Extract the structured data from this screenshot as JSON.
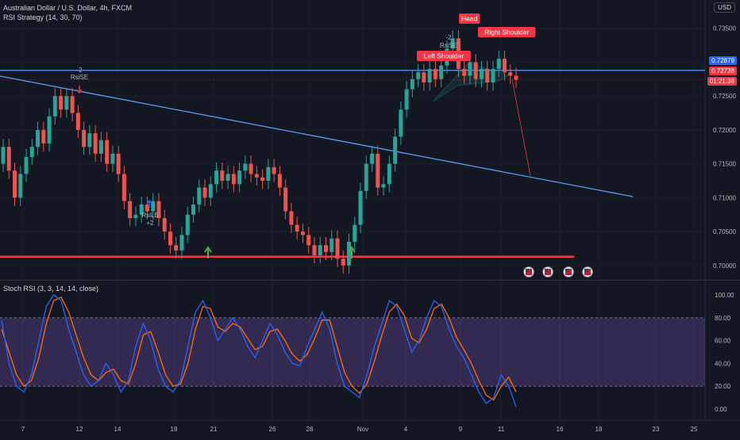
{
  "header": {
    "symbol": "Australian Dollar / U.S. Dollar, 4h, FXCM",
    "indicator": "RSI Strategy (14, 30, 70)"
  },
  "currency_badge": "USD",
  "price_axis": {
    "ticks": [
      "0.73500",
      "0.73000",
      "0.72500",
      "0.72000",
      "0.71500",
      "0.71000",
      "0.70500",
      "0.70000"
    ],
    "current_price": "0.72738",
    "line_price": "0.72879",
    "countdown": "01:21:38"
  },
  "time_axis": {
    "labels": [
      "7",
      "12",
      "14",
      "19",
      "21",
      "26",
      "28",
      "Nov",
      "4",
      "9",
      "11",
      "16",
      "18",
      "23",
      "25"
    ]
  },
  "annotations": {
    "head": "Head",
    "left_shoulder": "Left Shoulder",
    "right_shoulder": "Right Shoulder",
    "rsise_top_count": "-2",
    "rsise_top": "RsiSE",
    "rsise_mid_count": "-2",
    "rsise_mid": "RsiSE",
    "rsile": "RsiLE",
    "rsile_count": "+2"
  },
  "stoch": {
    "title": "Stoch RSI (3, 3, 14, 14, close)",
    "ticks": [
      "100.00",
      "80.00",
      "60.00",
      "40.00",
      "20.00",
      "0.00"
    ]
  },
  "colors": {
    "background": "#131722",
    "up": "#26a69a",
    "down": "#ef5350",
    "trendline": "#5b9cf6",
    "support": "#f23645",
    "stoch_k": "#2962ff",
    "stoch_d": "#ff6d00",
    "band": "#7e57c2"
  },
  "chart_data": {
    "type": "candlestick",
    "instrument": "Australian Dollar / U.S. Dollar",
    "timeframe": "4h",
    "yrange": [
      0.698,
      0.738
    ],
    "close_path": [
      [
        0.715,
        0.7175
      ],
      [
        0.7175,
        0.714
      ],
      [
        0.714,
        0.71
      ],
      [
        0.71,
        0.7135
      ],
      [
        0.7135,
        0.716
      ],
      [
        0.716,
        0.7175
      ],
      [
        0.7175,
        0.72
      ],
      [
        0.72,
        0.718
      ],
      [
        0.718,
        0.722
      ],
      [
        0.722,
        0.725
      ],
      [
        0.725,
        0.723
      ],
      [
        0.723,
        0.725
      ],
      [
        0.725,
        0.7225
      ],
      [
        0.7225,
        0.72
      ],
      [
        0.72,
        0.7175
      ],
      [
        0.7175,
        0.7195
      ],
      [
        0.7195,
        0.7165
      ],
      [
        0.7165,
        0.7185
      ],
      [
        0.7185,
        0.715
      ],
      [
        0.715,
        0.7165
      ],
      [
        0.7165,
        0.7135
      ],
      [
        0.7135,
        0.7095
      ],
      [
        0.7095,
        0.707
      ],
      [
        0.707,
        0.7075
      ],
      [
        0.7075,
        0.709
      ],
      [
        0.709,
        0.708
      ],
      [
        0.708,
        0.7095
      ],
      [
        0.7095,
        0.707
      ],
      [
        0.707,
        0.705
      ],
      [
        0.705,
        0.703
      ],
      [
        0.703,
        0.7022
      ],
      [
        0.7022,
        0.7045
      ],
      [
        0.7045,
        0.7075
      ],
      [
        0.7075,
        0.709
      ],
      [
        0.709,
        0.7115
      ],
      [
        0.7115,
        0.71
      ],
      [
        0.71,
        0.712
      ],
      [
        0.712,
        0.714
      ],
      [
        0.714,
        0.7125
      ],
      [
        0.7125,
        0.7135
      ],
      [
        0.7135,
        0.712
      ],
      [
        0.712,
        0.714
      ],
      [
        0.714,
        0.715
      ],
      [
        0.715,
        0.7135
      ],
      [
        0.7135,
        0.713
      ],
      [
        0.713,
        0.7125
      ],
      [
        0.7125,
        0.7145
      ],
      [
        0.7145,
        0.7135
      ],
      [
        0.7135,
        0.7115
      ],
      [
        0.7115,
        0.708
      ],
      [
        0.708,
        0.706
      ],
      [
        0.706,
        0.705
      ],
      [
        0.705,
        0.7045
      ],
      [
        0.7045,
        0.703
      ],
      [
        0.703,
        0.7015
      ],
      [
        0.7015,
        0.703
      ],
      [
        0.703,
        0.702
      ],
      [
        0.702,
        0.704
      ],
      [
        0.704,
        0.701
      ],
      [
        0.701,
        0.7
      ],
      [
        0.7,
        0.7035
      ],
      [
        0.7035,
        0.706
      ],
      [
        0.706,
        0.711
      ],
      [
        0.711,
        0.715
      ],
      [
        0.715,
        0.7165
      ],
      [
        0.7165,
        0.7115
      ],
      [
        0.7115,
        0.712
      ],
      [
        0.712,
        0.715
      ],
      [
        0.715,
        0.719
      ],
      [
        0.719,
        0.723
      ],
      [
        0.723,
        0.726
      ],
      [
        0.726,
        0.7275
      ],
      [
        0.7275,
        0.7285
      ],
      [
        0.7285,
        0.727
      ],
      [
        0.727,
        0.729
      ],
      [
        0.729,
        0.7275
      ],
      [
        0.7275,
        0.7295
      ],
      [
        0.7295,
        0.732
      ],
      [
        0.732,
        0.7335
      ],
      [
        0.7335,
        0.729
      ],
      [
        0.729,
        0.728
      ],
      [
        0.728,
        0.73
      ],
      [
        0.73,
        0.7275
      ],
      [
        0.7275,
        0.729
      ],
      [
        0.729,
        0.727
      ],
      [
        0.727,
        0.729
      ],
      [
        0.729,
        0.7305
      ],
      [
        0.7305,
        0.7285
      ],
      [
        0.7285,
        0.728
      ],
      [
        0.728,
        0.7274
      ]
    ],
    "support_level": 0.7013,
    "stoch_rsi": {
      "k": [
        78,
        40,
        20,
        15,
        30,
        60,
        90,
        100,
        95,
        70,
        50,
        30,
        20,
        25,
        40,
        30,
        15,
        25,
        55,
        75,
        60,
        35,
        20,
        15,
        25,
        55,
        85,
        95,
        80,
        60,
        70,
        80,
        70,
        55,
        45,
        60,
        75,
        65,
        50,
        40,
        38,
        55,
        70,
        85,
        70,
        40,
        20,
        15,
        10,
        30,
        55,
        75,
        95,
        90,
        70,
        50,
        60,
        80,
        95,
        90,
        70,
        55,
        45,
        30,
        15,
        5,
        10,
        30,
        20,
        2
      ],
      "d": [
        70,
        50,
        30,
        20,
        25,
        45,
        75,
        95,
        98,
        85,
        65,
        45,
        30,
        25,
        32,
        35,
        25,
        22,
        40,
        65,
        68,
        50,
        30,
        20,
        22,
        40,
        70,
        90,
        88,
        72,
        68,
        75,
        72,
        62,
        52,
        55,
        68,
        70,
        60,
        48,
        42,
        48,
        62,
        78,
        78,
        55,
        32,
        20,
        14,
        22,
        42,
        65,
        85,
        92,
        82,
        62,
        58,
        70,
        88,
        92,
        80,
        63,
        52,
        40,
        25,
        12,
        8,
        20,
        28,
        15
      ]
    }
  }
}
